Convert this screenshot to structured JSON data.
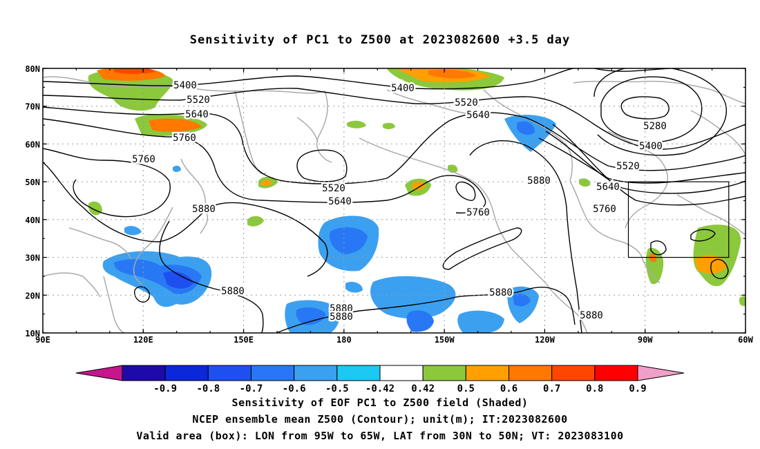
{
  "title": "Sensitivity of PC1 to Z500 at 2023082600 +3.5 day",
  "map": {
    "lon_range": [
      90,
      300
    ],
    "lat_range": [
      10,
      80
    ],
    "x_ticks": [
      {
        "lon": 90,
        "label": "90E"
      },
      {
        "lon": 120,
        "label": "120E"
      },
      {
        "lon": 150,
        "label": "150E"
      },
      {
        "lon": 180,
        "label": "180"
      },
      {
        "lon": 210,
        "label": "150W"
      },
      {
        "lon": 240,
        "label": "120W"
      },
      {
        "lon": 270,
        "label": "90W"
      },
      {
        "lon": 300,
        "label": "60W"
      }
    ],
    "y_ticks": [
      {
        "lat": 10,
        "label": "10N"
      },
      {
        "lat": 20,
        "label": "20N"
      },
      {
        "lat": 30,
        "label": "30N"
      },
      {
        "lat": 40,
        "label": "40N"
      },
      {
        "lat": 50,
        "label": "50N"
      },
      {
        "lat": 60,
        "label": "60N"
      },
      {
        "lat": 70,
        "label": "70N"
      },
      {
        "lat": 80,
        "label": "80N"
      }
    ],
    "grid": true,
    "valid_box": {
      "lon_west": 265,
      "lon_east": 295,
      "lat_south": 30,
      "lat_north": 50
    },
    "contour_labels": [
      "5280",
      "5400",
      "5520",
      "5640",
      "5760",
      "5880"
    ]
  },
  "colorbar": {
    "labels": [
      "-0.9",
      "-0.8",
      "-0.7",
      "-0.6",
      "-0.5",
      "-0.42",
      "0.42",
      "0.5",
      "0.6",
      "0.7",
      "0.8",
      "0.9"
    ],
    "colors": [
      "#c6168d",
      "#1e0aa8",
      "#0a28d8",
      "#1e50f0",
      "#2878f5",
      "#3ca0f0",
      "#1ec8f5",
      "#ffffff",
      "#8cc83c",
      "#ffa000",
      "#ff7800",
      "#ff4600",
      "#ff0000",
      "#f0a0c8"
    ]
  },
  "captions": {
    "line1": "Sensitivity of EOF PC1 to Z500 field (Shaded)",
    "line2": "NCEP ensemble mean Z500 (Contour); unit(m); IT:2023082600",
    "line3": "Valid area (box): LON from 95W to 65W, LAT from 30N to 50N; VT: 2023083100"
  }
}
